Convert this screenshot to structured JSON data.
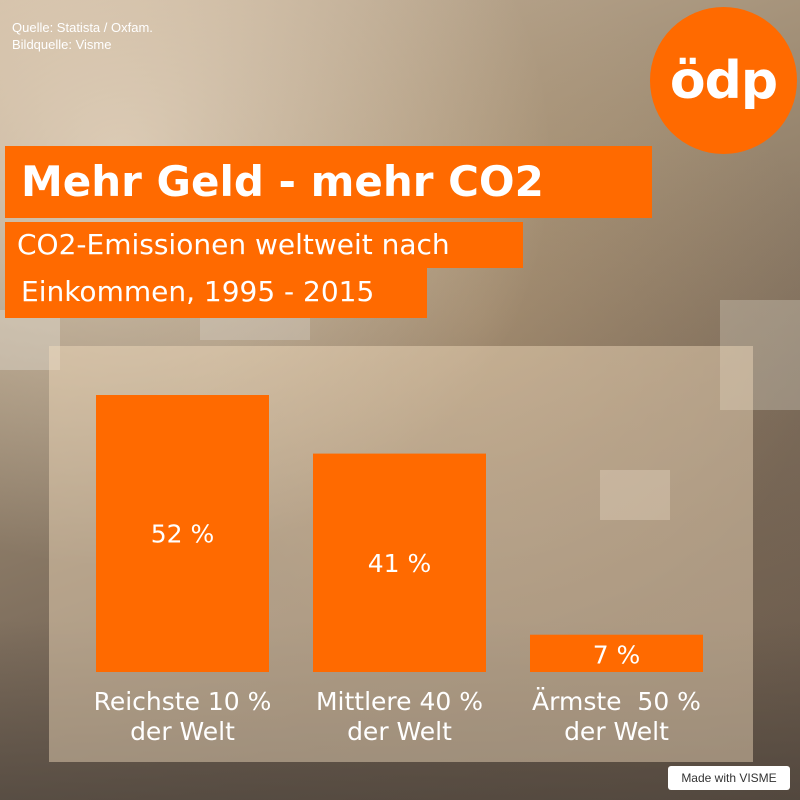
{
  "source": {
    "line1": "Quelle: Statista / Oxfam.",
    "line2": "Bildquelle: Visme"
  },
  "logo": {
    "text": "ödp"
  },
  "header": {
    "title": "Mehr Geld - mehr CO2",
    "subtitle_line1": "CO2-Emissionen weltweit nach",
    "subtitle_line2": "Einkommen, 1995 - 2015"
  },
  "colors": {
    "accent": "#ff6a00",
    "text": "#ffffff"
  },
  "chart_data": {
    "type": "bar",
    "title": "Mehr Geld - mehr CO2",
    "subtitle": "CO2-Emissionen weltweit nach Einkommen, 1995 - 2015",
    "categories": [
      [
        "Reichste 10 %",
        "der Welt"
      ],
      [
        "Mittlere 40 %",
        "der Welt"
      ],
      [
        "Ärmste  50 %",
        "der Welt"
      ]
    ],
    "values": [
      52,
      41,
      7
    ],
    "value_labels": [
      "52 %",
      "41 %",
      "7 %"
    ],
    "ylim": [
      0,
      52
    ],
    "grid": false,
    "legend": "none"
  },
  "footer": {
    "badge": "Made with VISME"
  }
}
